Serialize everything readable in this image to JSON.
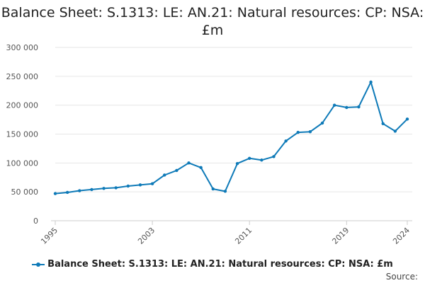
{
  "chart_data": {
    "type": "line",
    "title": "Balance Sheet: S.1313: LE: AN.21: Natural resources: CP: NSA: £m",
    "xlabel": "",
    "ylabel": "",
    "x": [
      1995,
      1996,
      1997,
      1998,
      1999,
      2000,
      2001,
      2002,
      2003,
      2004,
      2005,
      2006,
      2007,
      2008,
      2009,
      2010,
      2011,
      2012,
      2013,
      2014,
      2015,
      2016,
      2017,
      2018,
      2019,
      2020,
      2021,
      2022,
      2023,
      2024
    ],
    "series": [
      {
        "name": "Balance Sheet: S.1313: LE: AN.21: Natural resources: CP: NSA: £m",
        "color": "#0e7ab8",
        "values": [
          47000,
          49000,
          52000,
          54000,
          56000,
          57000,
          60000,
          62000,
          64000,
          79000,
          87000,
          100000,
          92000,
          55000,
          51000,
          99000,
          108000,
          105000,
          111000,
          138000,
          153000,
          154000,
          169000,
          200000,
          196000,
          197000,
          240000,
          168000,
          155000,
          176000
        ]
      }
    ],
    "y_ticks": [
      "0",
      "50 000",
      "100 000",
      "150 000",
      "200 000",
      "250 000",
      "300 000"
    ],
    "x_ticks": [
      "1995",
      "2003",
      "2011",
      "2019",
      "2024"
    ],
    "ylim": [
      0,
      300000
    ],
    "xlim": [
      1995,
      2024
    ],
    "grid": true,
    "legend_position": "bottom"
  },
  "source_label": "Source:"
}
